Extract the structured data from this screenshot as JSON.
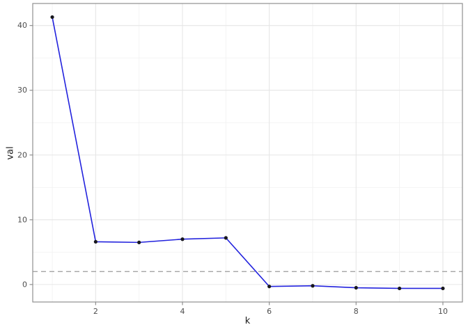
{
  "figure": {
    "background": "#ffffff"
  },
  "chart_data": {
    "type": "line",
    "title": "",
    "xlabel": "k",
    "ylabel": "val",
    "x": [
      1,
      2,
      3,
      4,
      5,
      6,
      7,
      8,
      9,
      10
    ],
    "y": [
      41.3,
      6.6,
      6.5,
      7.0,
      7.2,
      -0.3,
      -0.2,
      -0.5,
      -0.6,
      -0.6
    ],
    "x_ticks": [
      2,
      4,
      6,
      8,
      10
    ],
    "y_ticks": [
      0,
      10,
      20,
      30,
      40
    ],
    "x_minor_ticks": [
      1,
      3,
      5,
      7,
      9
    ],
    "y_minor_ticks": [
      5,
      15,
      25,
      35
    ],
    "xlim": [
      0.55,
      10.45
    ],
    "ylim": [
      -2.7,
      43.4
    ],
    "reference_line": {
      "orientation": "horizontal",
      "value": 2,
      "style": "dashed"
    },
    "grid": "major+minor",
    "legend": "none",
    "marker": "filled-circle",
    "colors": {
      "line": "#2222dd",
      "point": "#17171d",
      "reference": "#9b9b9b",
      "grid_major": "#e6e6e6",
      "grid_minor": "#f2f2f2",
      "panel_border": "#8f8f8f",
      "tick_mark": "#8f8f8f",
      "tick_text": "#4d4d4d",
      "axis_title_text": "#1a1a1a",
      "panel_background": "#ffffff"
    }
  }
}
